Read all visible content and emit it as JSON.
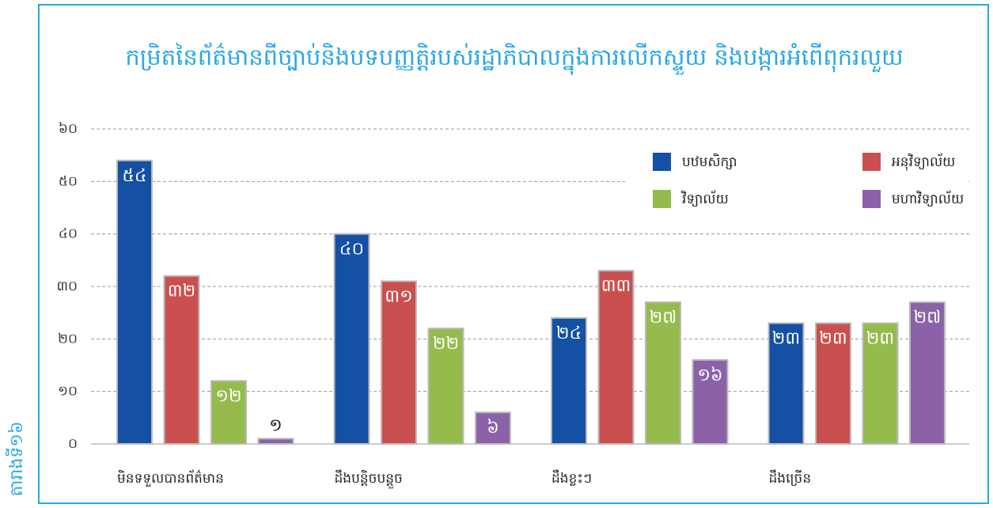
{
  "chart_data": {
    "type": "bar",
    "title": "កម្រិតនៃព័ត៌មានពីច្បាប់និងបទបញ្ញត្តិរបស់រដ្ឋាភិបាលក្នុងការលើកស្ទួយ និងបង្ការអំពើពុករលួយ",
    "side_label": "តារាងទី១៦",
    "categories": [
      "មិនទទួលបានព័ត៌មាន",
      "ដឹងបន្តិចបន្តួច",
      "ដឹងខ្លះៗ",
      "ដឹងច្រើន"
    ],
    "series": [
      {
        "name": "បឋមសិក្សា",
        "color": "#1450a3",
        "values": [
          54,
          40,
          24,
          23
        ],
        "value_labels": [
          "៥៤",
          "៤០",
          "២៤",
          "២៣"
        ]
      },
      {
        "name": "អនុវិទ្យាល័យ",
        "color": "#c9504f",
        "values": [
          32,
          31,
          33,
          23
        ],
        "value_labels": [
          "៣២",
          "៣១",
          "៣៣",
          "២៣"
        ]
      },
      {
        "name": "វិទ្យាល័យ",
        "color": "#94bb4c",
        "values": [
          12,
          22,
          27,
          23
        ],
        "value_labels": [
          "១២",
          "២២",
          "២៧",
          "២៣"
        ]
      },
      {
        "name": "មហាវិទ្យាល័យ",
        "color": "#8b62a8",
        "values": [
          1,
          6,
          16,
          27
        ],
        "value_labels": [
          "១",
          "៦",
          "១៦",
          "២៧"
        ]
      }
    ],
    "ylim": [
      0,
      60
    ],
    "yticks": [
      {
        "value": 0,
        "label": "០"
      },
      {
        "value": 10,
        "label": "១០"
      },
      {
        "value": 20,
        "label": "២០"
      },
      {
        "value": 30,
        "label": "៣០"
      },
      {
        "value": 40,
        "label": "៤០"
      },
      {
        "value": 50,
        "label": "៥០"
      },
      {
        "value": 60,
        "label": "៦០"
      }
    ],
    "grid": true,
    "legend": "upper right"
  }
}
